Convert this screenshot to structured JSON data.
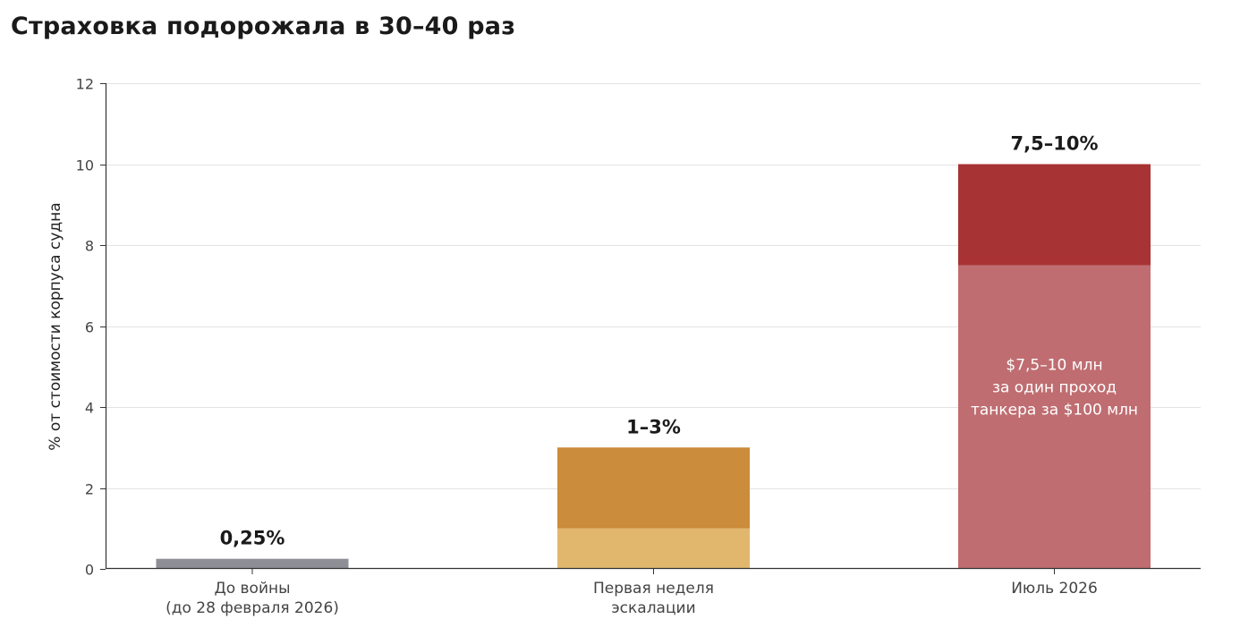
{
  "chart_data": {
    "type": "bar",
    "stacked": true,
    "title": "Страховка подорожала в 30–40 раз",
    "ylabel": "% от стоимости корпуса судна",
    "xlabel": "",
    "ylim": [
      0,
      12
    ],
    "yticks": [
      0,
      2,
      4,
      6,
      8,
      10,
      12
    ],
    "grid": true,
    "categories": [
      [
        "До войны",
        "(до 28 февраля 2026)"
      ],
      [
        "Первая неделя",
        "эскалации"
      ],
      [
        "Июль 2026"
      ]
    ],
    "segments": [
      [
        {
          "base": 0,
          "top": 0.25,
          "color": "#8e8e96"
        }
      ],
      [
        {
          "base": 0,
          "top": 1,
          "color": "#e1b76e"
        },
        {
          "base": 1,
          "top": 3,
          "color": "#cb8c3b"
        }
      ],
      [
        {
          "base": 0,
          "top": 7.5,
          "color": "#bf6d71"
        },
        {
          "base": 7.5,
          "top": 10,
          "color": "#a83334"
        }
      ]
    ],
    "value_labels": [
      "0,25%",
      "1–3%",
      "7,5–10%"
    ],
    "annotation": {
      "category_index": 2,
      "y": 4.5,
      "lines": [
        "$7,5–10 млн",
        "за один проход",
        "танкера за $100 млн"
      ]
    }
  }
}
